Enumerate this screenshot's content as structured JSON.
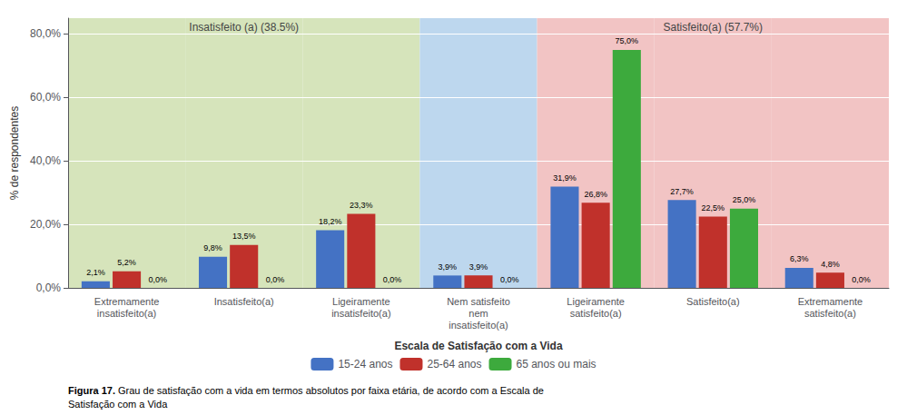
{
  "chart_data": {
    "type": "bar",
    "categories": [
      "Extremamente\ninsatisfeito(a)",
      "Insatisfeito(a)",
      "Ligeiramente\ninsatisfeito(a)",
      "Nem satisfeito\nnem\ninsatisfeito(a)",
      "Ligeiramente\nsatisfeito(a)",
      "Satisfeito(a)",
      "Extremamente\nsatisfeito(a)"
    ],
    "series": [
      {
        "name": "15-24 anos",
        "color": "#4472C4",
        "values": [
          2.1,
          9.8,
          18.2,
          3.9,
          31.9,
          27.7,
          6.3
        ],
        "value_labels": [
          "2,1%",
          "9,8%",
          "18,2%",
          "3,9%",
          "31,9%",
          "27,7%",
          "6,3%"
        ]
      },
      {
        "name": "25-64 anos",
        "color": "#C0312B",
        "values": [
          5.2,
          13.5,
          23.3,
          3.9,
          26.8,
          22.5,
          4.8
        ],
        "value_labels": [
          "5,2%",
          "13,5%",
          "23,3%",
          "3,9%",
          "26,8%",
          "22,5%",
          "4,8%"
        ]
      },
      {
        "name": "65 anos ou mais",
        "color": "#3DAA3D",
        "values": [
          0.0,
          0.0,
          0.0,
          0.0,
          75.0,
          25.0,
          0.0
        ],
        "value_labels": [
          "0,0%",
          "0,0%",
          "0,0%",
          "0,0%",
          "75,0%",
          "25,0%",
          "0,0%"
        ]
      }
    ],
    "data_labels": true,
    "xlabel": "Escala de Satisfação com a Vida",
    "ylabel": "% de respondentes",
    "ylim": [
      0,
      85
    ],
    "yticks": [
      {
        "value": 0,
        "label": "0,0%"
      },
      {
        "value": 20,
        "label": "20,0%"
      },
      {
        "value": 40,
        "label": "40,0%"
      },
      {
        "value": 60,
        "label": "60,0%"
      },
      {
        "value": 80,
        "label": "80,0%"
      }
    ],
    "grid": true,
    "legend": "bottom",
    "regions": [
      {
        "from": "Extremamente\ninsatisfeito(a)",
        "to": "Ligeiramente\ninsatisfeito(a)",
        "color": "#D6E4BB",
        "label": "Insatisfeito (a) (38.5%)"
      },
      {
        "from": "Nem satisfeito\nnem\ninsatisfeito(a)",
        "to": "Nem satisfeito\nnem\ninsatisfeito(a)",
        "color": "#BDD7EE"
      },
      {
        "from": "Ligeiramente\nsatisfeito(a)",
        "to": "Extremamente\nsatisfeito(a)",
        "color": "#F2C4C4",
        "label": "Satisfeito(a) (57.7%)"
      }
    ],
    "caption": {
      "bold": "Figura 17.",
      "text": "Grau de satisfação com a vida em termos absolutos por faixa etária, de acordo com a Escala de\nSatisfação com a Vida"
    }
  }
}
